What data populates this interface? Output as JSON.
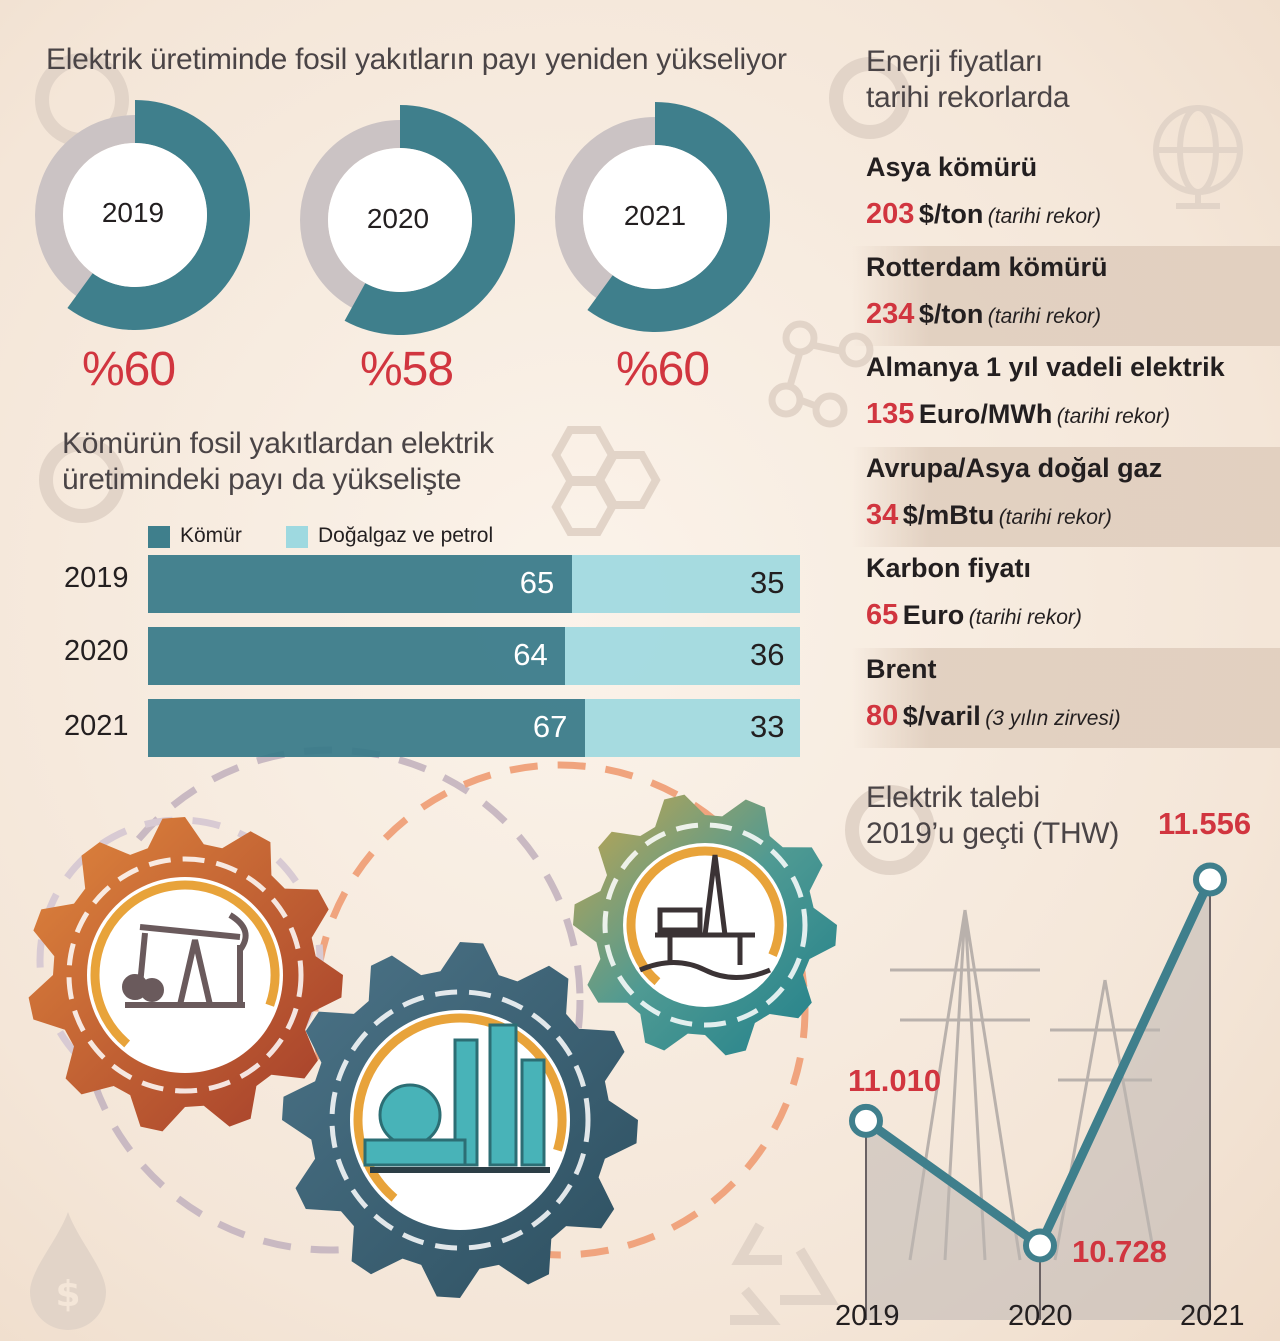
{
  "chart_data": [
    {
      "type": "donut",
      "title": "Elektrik üretiminde fosil yakıtların payı yeniden yükseliyor",
      "categories": [
        "2019",
        "2020",
        "2021"
      ],
      "values": [
        60,
        58,
        60
      ],
      "labels": [
        "%60",
        "%58",
        "%60"
      ],
      "unit": "%"
    },
    {
      "type": "bar",
      "stacked": true,
      "orientation": "horizontal",
      "title": "Kömürün fosil yakıtlardan elektrik üretimindeki payı da yükselişte",
      "categories": [
        "2019",
        "2020",
        "2021"
      ],
      "series": [
        {
          "name": "Kömür",
          "values": [
            65,
            64,
            67
          ]
        },
        {
          "name": "Doğalgaz ve petrol",
          "values": [
            35,
            36,
            33
          ]
        }
      ],
      "xlim": [
        0,
        100
      ]
    },
    {
      "type": "line",
      "title": "Elektrik talebi 2019'u geçti (THW)",
      "x": [
        "2019",
        "2020",
        "2021"
      ],
      "values": [
        11010,
        10728,
        11556
      ],
      "labels": [
        "11.010",
        "10.728",
        "11.556"
      ],
      "ylabel": "THW"
    }
  ],
  "donut": {
    "title": "Elektrik üretiminde fosil yakıtların payı yeniden yükseliyor",
    "items": [
      {
        "year": "2019",
        "label": "%60"
      },
      {
        "year": "2020",
        "label": "%58"
      },
      {
        "year": "2021",
        "label": "%60"
      }
    ]
  },
  "bars": {
    "title_line1": "Kömürün fosil yakıtlardan elektrik",
    "title_line2": "üretimindeki payı da yükselişte",
    "legend": [
      "Kömür",
      "Doğalgaz ve petrol"
    ],
    "rows": [
      {
        "year": "2019",
        "coal": "65",
        "gas": "35"
      },
      {
        "year": "2020",
        "coal": "64",
        "gas": "36"
      },
      {
        "year": "2021",
        "coal": "67",
        "gas": "33"
      }
    ]
  },
  "prices": {
    "title_line1": "Enerji fiyatları",
    "title_line2": "tarihi rekorlarda",
    "items": [
      {
        "name": "Asya kömürü",
        "value": "203",
        "unit": "$/ton",
        "note": "(tarihi rekor)"
      },
      {
        "name": "Rotterdam kömürü",
        "value": "234",
        "unit": "$/ton",
        "note": "(tarihi rekor)"
      },
      {
        "name": "Almanya 1 yıl vadeli elektrik",
        "value": "135",
        "unit": "Euro/MWh",
        "note": "(tarihi rekor)"
      },
      {
        "name": "Avrupa/Asya doğal gaz",
        "value": "34",
        "unit": "$/mBtu",
        "note": "(tarihi rekor)"
      },
      {
        "name": "Karbon fiyatı",
        "value": "65",
        "unit": "Euro",
        "note": "(tarihi rekor)"
      },
      {
        "name": "Brent",
        "value": "80",
        "unit": "$/varil",
        "note": "(3 yılın zirvesi)"
      }
    ]
  },
  "demand": {
    "title_line1": "Elektrik talebi",
    "title_line2": "2019’u geçti (THW)",
    "years": [
      "2019",
      "2020",
      "2021"
    ],
    "labels": [
      "11.010",
      "10.728",
      "11.556"
    ]
  },
  "colors": {
    "teal": "#3f7f8c",
    "light_teal": "#9ed9e0",
    "red": "#d1353f",
    "gray_ring": "#cbc3c4",
    "orange": "#e8a33a",
    "rust": "#b0462c"
  }
}
